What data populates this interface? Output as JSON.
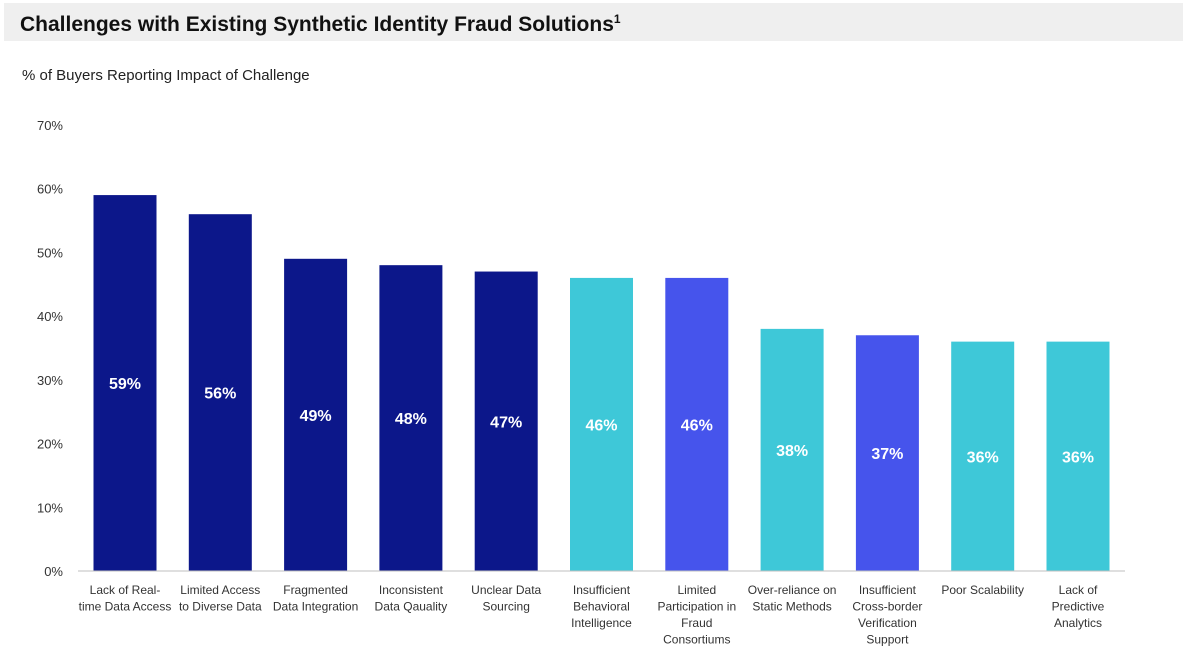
{
  "title": "Challenges with Existing Synthetic Identity Fraud Solutions",
  "title_sup": "1",
  "subtitle": "% of Buyers Reporting Impact of Challenge",
  "colors": {
    "dark_navy": "#0c178a",
    "cyan": "#3ec8d8",
    "blue": "#4654ec",
    "axis": "#bfbfbf"
  },
  "chart_data": {
    "type": "bar",
    "ylim": [
      0,
      70
    ],
    "yticks": [
      {
        "value": 0,
        "label": "0%"
      },
      {
        "value": 10,
        "label": "10%"
      },
      {
        "value": 20,
        "label": "20%"
      },
      {
        "value": 30,
        "label": "30%"
      },
      {
        "value": 40,
        "label": "40%"
      },
      {
        "value": 50,
        "label": "50%"
      },
      {
        "value": 60,
        "label": "60%"
      },
      {
        "value": 70,
        "label": "70%"
      }
    ],
    "grid": false,
    "legend": "none",
    "bars": [
      {
        "label_lines": [
          "Lack of Real-",
          "time Data Access"
        ],
        "value": 59,
        "value_label": "59%",
        "color": "#0c178a"
      },
      {
        "label_lines": [
          "Limited Access",
          "to Diverse Data"
        ],
        "value": 56,
        "value_label": "56%",
        "color": "#0c178a"
      },
      {
        "label_lines": [
          "Fragmented",
          "Data Integration"
        ],
        "value": 49,
        "value_label": "49%",
        "color": "#0c178a"
      },
      {
        "label_lines": [
          "Inconsistent",
          "Data Qauality"
        ],
        "value": 48,
        "value_label": "48%",
        "color": "#0c178a"
      },
      {
        "label_lines": [
          "Unclear Data",
          "Sourcing"
        ],
        "value": 47,
        "value_label": "47%",
        "color": "#0c178a"
      },
      {
        "label_lines": [
          "Insufficient",
          "Behavioral",
          "Intelligence"
        ],
        "value": 46,
        "value_label": "46%",
        "color": "#3ec8d8"
      },
      {
        "label_lines": [
          "Limited",
          "Participation in",
          "Fraud",
          "Consortiums"
        ],
        "value": 46,
        "value_label": "46%",
        "color": "#4654ec"
      },
      {
        "label_lines": [
          "Over-reliance on",
          "Static Methods"
        ],
        "value": 38,
        "value_label": "38%",
        "color": "#3ec8d8"
      },
      {
        "label_lines": [
          "Insufficient",
          "Cross-border",
          "Verification",
          "Support"
        ],
        "value": 37,
        "value_label": "37%",
        "color": "#4654ec"
      },
      {
        "label_lines": [
          "Poor Scalability"
        ],
        "value": 36,
        "value_label": "36%",
        "color": "#3ec8d8"
      },
      {
        "label_lines": [
          "Lack of",
          "Predictive",
          "Analytics"
        ],
        "value": 36,
        "value_label": "36%",
        "color": "#3ec8d8"
      }
    ]
  }
}
